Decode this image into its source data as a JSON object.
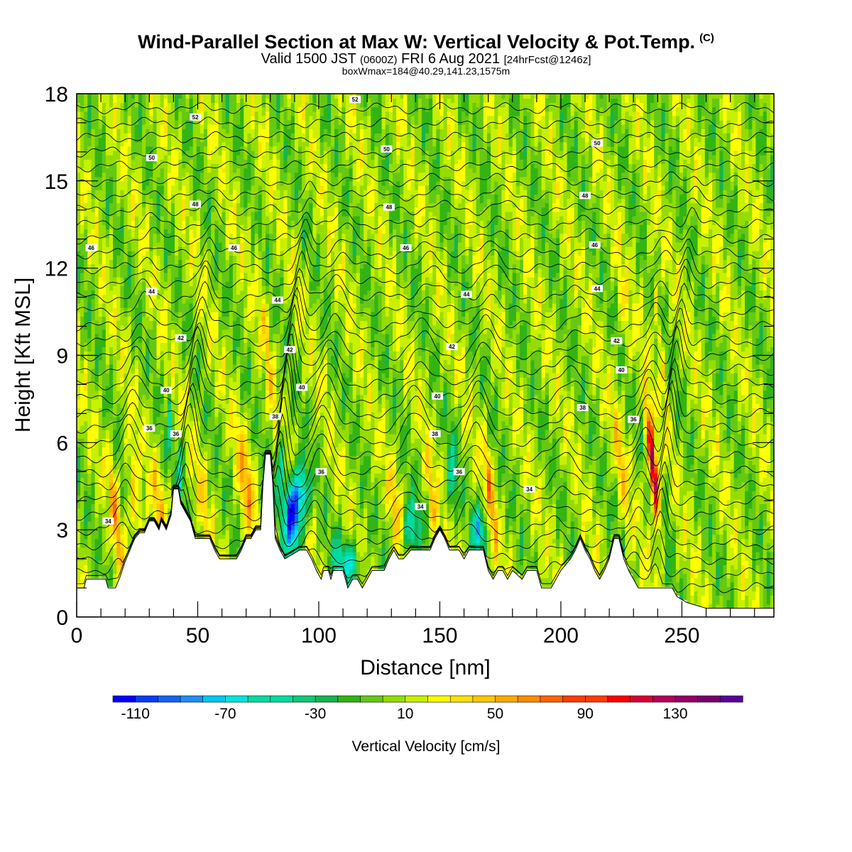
{
  "title": {
    "main": "Wind-Parallel Section at Max W: Vertical Velocity & Pot.Temp.",
    "tag": "(C)",
    "valid_prefix": "Valid 1500 JST",
    "valid_z": "(0600Z)",
    "valid_date": "FRI 6 Aug 2021",
    "valid_fcst": "[24hrFcst@1246z]",
    "box": "boxWmax=184@40.29,141.23,1575m"
  },
  "chart_data": {
    "type": "heatmap",
    "xlabel": "Distance [nm]",
    "ylabel": "Height [Kft MSL]",
    "xlim": [
      0,
      288
    ],
    "ylim": [
      0,
      18
    ],
    "xticks": [
      0,
      50,
      100,
      150,
      200,
      250
    ],
    "yticks": [
      0,
      3,
      6,
      9,
      12,
      15,
      18
    ],
    "colorbar": {
      "label": "Vertical Velocity [cm/s]",
      "min": -120,
      "max": 160,
      "step": 10,
      "tick_labels": [
        -110,
        -70,
        -30,
        10,
        50,
        90,
        130
      ],
      "colors": [
        "#0000ff",
        "#0a3cf5",
        "#1464f0",
        "#1e90f0",
        "#00c8f0",
        "#00e6dc",
        "#00dca0",
        "#10c878",
        "#14b450",
        "#32b414",
        "#64c814",
        "#96dc00",
        "#c8f000",
        "#ffff00",
        "#ffe100",
        "#ffc800",
        "#ffaa00",
        "#ff8c00",
        "#ff6400",
        "#ff3c00",
        "#ff0000",
        "#dc0032",
        "#b4005a",
        "#960064",
        "#78006e",
        "#5a009b"
      ]
    },
    "theta_contours": {
      "units": "C",
      "labels": [
        {
          "x": 13,
          "z": 3.3,
          "v": "34"
        },
        {
          "x": 30,
          "z": 6.5,
          "v": "36"
        },
        {
          "x": 41,
          "z": 6.3,
          "v": "36"
        },
        {
          "x": 37,
          "z": 7.8,
          "v": "40"
        },
        {
          "x": 43,
          "z": 9.6,
          "v": "42"
        },
        {
          "x": 31,
          "z": 11.2,
          "v": "44"
        },
        {
          "x": 6,
          "z": 12.7,
          "v": "46"
        },
        {
          "x": 65,
          "z": 12.7,
          "v": "46"
        },
        {
          "x": 49,
          "z": 14.2,
          "v": "48"
        },
        {
          "x": 31,
          "z": 15.8,
          "v": "50"
        },
        {
          "x": 49,
          "z": 17.2,
          "v": "52"
        },
        {
          "x": 83,
          "z": 10.9,
          "v": "44"
        },
        {
          "x": 88,
          "z": 9.2,
          "v": "42"
        },
        {
          "x": 82,
          "z": 6.9,
          "v": "38"
        },
        {
          "x": 93,
          "z": 7.9,
          "v": "40"
        },
        {
          "x": 101,
          "z": 5.0,
          "v": "36"
        },
        {
          "x": 128,
          "z": 16.1,
          "v": "50"
        },
        {
          "x": 115,
          "z": 17.8,
          "v": "52"
        },
        {
          "x": 129,
          "z": 14.1,
          "v": "48"
        },
        {
          "x": 136,
          "z": 12.7,
          "v": "46"
        },
        {
          "x": 161,
          "z": 11.1,
          "v": "44"
        },
        {
          "x": 155,
          "z": 9.3,
          "v": "42"
        },
        {
          "x": 149,
          "z": 7.6,
          "v": "40"
        },
        {
          "x": 148,
          "z": 6.3,
          "v": "38"
        },
        {
          "x": 158,
          "z": 5.0,
          "v": "36"
        },
        {
          "x": 142,
          "z": 3.8,
          "v": "34"
        },
        {
          "x": 187,
          "z": 4.4,
          "v": "34"
        },
        {
          "x": 187,
          "z": 18.1,
          "v": "52"
        },
        {
          "x": 215,
          "z": 16.3,
          "v": "50"
        },
        {
          "x": 210,
          "z": 14.5,
          "v": "48"
        },
        {
          "x": 214,
          "z": 12.8,
          "v": "46"
        },
        {
          "x": 215,
          "z": 11.3,
          "v": "44"
        },
        {
          "x": 223,
          "z": 9.5,
          "v": "42"
        },
        {
          "x": 225,
          "z": 8.5,
          "v": "40"
        },
        {
          "x": 209,
          "z": 7.2,
          "v": "38"
        },
        {
          "x": 230,
          "z": 6.8,
          "v": "36"
        }
      ]
    }
  }
}
